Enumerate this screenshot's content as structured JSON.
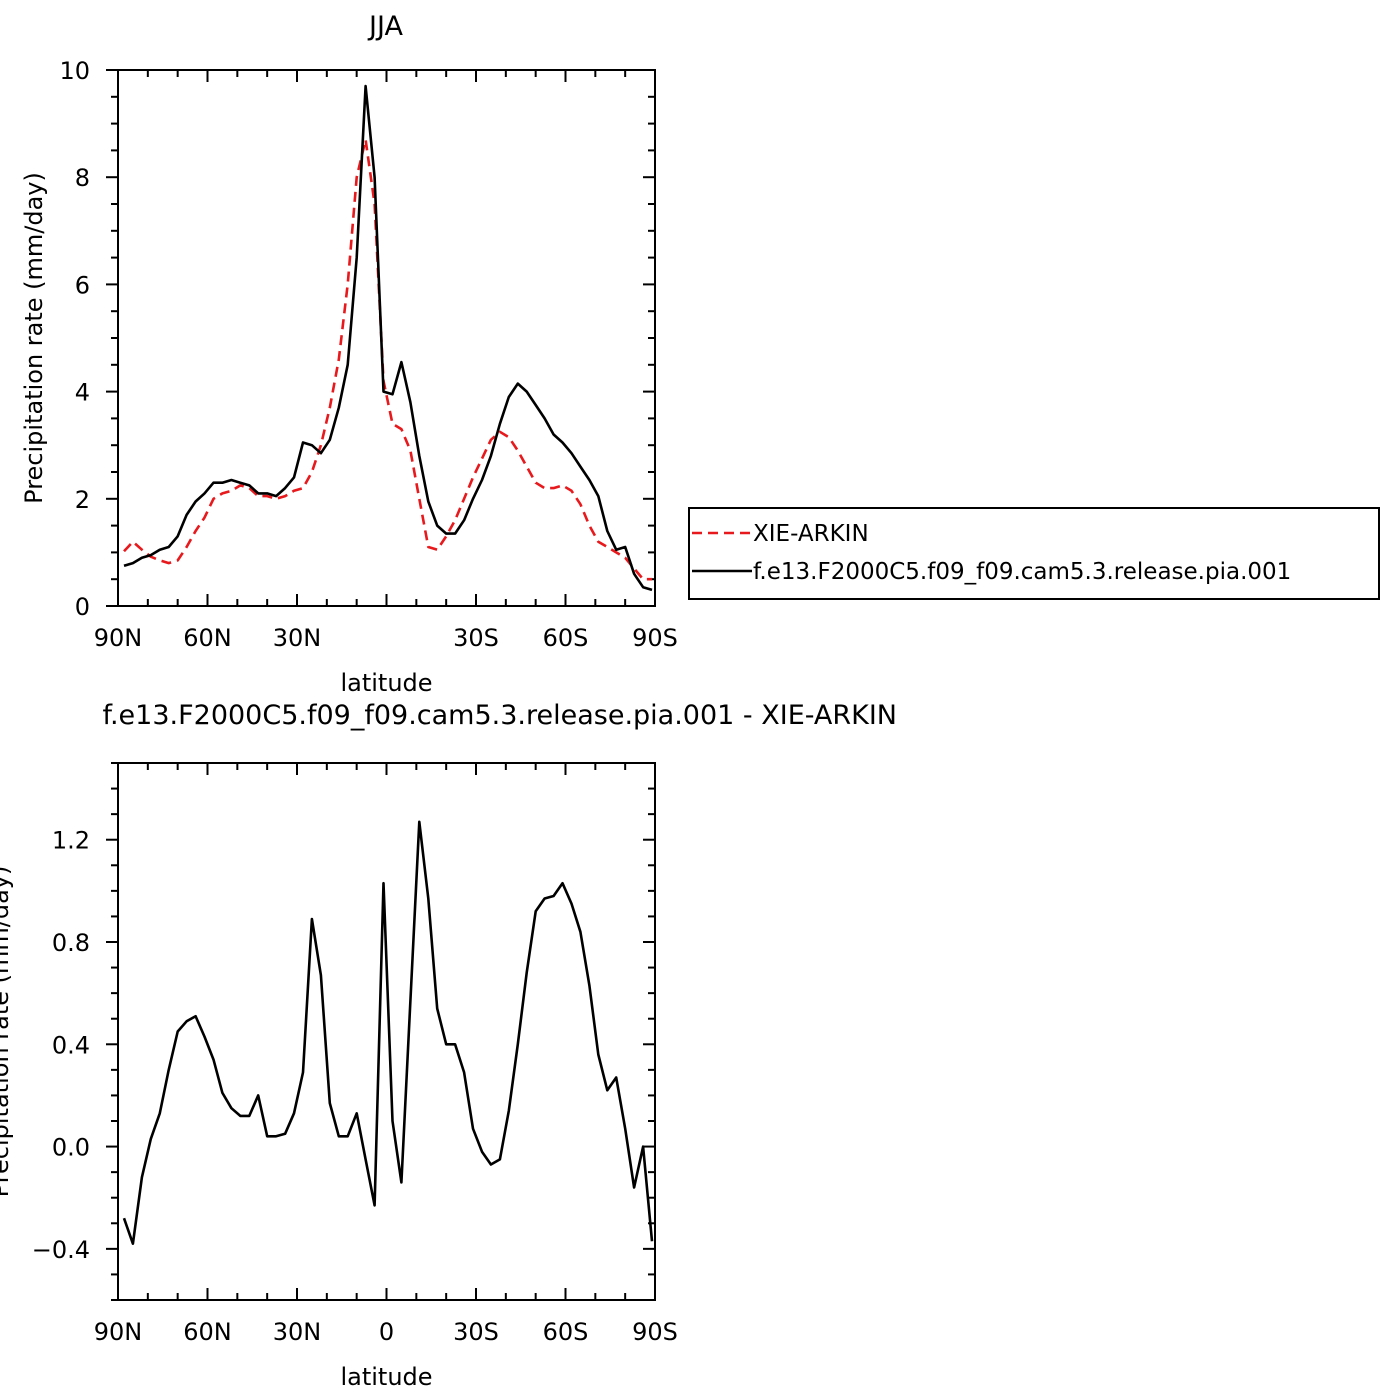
{
  "chart_data": [
    {
      "type": "line",
      "title": "JJA",
      "xlabel": "latitude",
      "ylabel": "Precipitation rate (mm/day)",
      "xlim": [
        90,
        -90
      ],
      "ylim": [
        0,
        10
      ],
      "x_ticks": [
        {
          "value": 90,
          "label": "90N"
        },
        {
          "value": 60,
          "label": "60N"
        },
        {
          "value": 30,
          "label": "30N"
        },
        {
          "value": -30,
          "label": "30S"
        },
        {
          "value": -60,
          "label": "60S"
        },
        {
          "value": -90,
          "label": "90S"
        }
      ],
      "y_ticks": [
        {
          "value": 0,
          "label": "0"
        },
        {
          "value": 2,
          "label": "2"
        },
        {
          "value": 4,
          "label": "4"
        },
        {
          "value": 6,
          "label": "6"
        },
        {
          "value": 8,
          "label": "8"
        },
        {
          "value": 10,
          "label": "10"
        }
      ],
      "legend_position": "right",
      "x": [
        88,
        85,
        82,
        79,
        76,
        73,
        70,
        67,
        64,
        61,
        58,
        55,
        52,
        49,
        46,
        43,
        40,
        37,
        34,
        31,
        28,
        25,
        22,
        19,
        16,
        13,
        10,
        7,
        4,
        1,
        -2,
        -5,
        -8,
        -11,
        -14,
        -17,
        -20,
        -23,
        -26,
        -29,
        -32,
        -35,
        -38,
        -41,
        -44,
        -47,
        -50,
        -53,
        -56,
        -59,
        -62,
        -65,
        -68,
        -71,
        -74,
        -77,
        -80,
        -83,
        -86,
        -89
      ],
      "series": [
        {
          "name": "XIE-ARKIN",
          "color": "#e8191c",
          "dash": "dashed",
          "values": [
            1.02,
            1.2,
            1.05,
            0.92,
            0.85,
            0.8,
            0.85,
            1.1,
            1.4,
            1.65,
            2.0,
            2.1,
            2.15,
            2.25,
            2.2,
            2.05,
            2.05,
            2.0,
            2.05,
            2.15,
            2.2,
            2.5,
            3.0,
            3.7,
            4.6,
            6.0,
            8.0,
            8.7,
            7.5,
            4.2,
            3.4,
            3.3,
            2.9,
            2.0,
            1.1,
            1.05,
            1.3,
            1.6,
            2.0,
            2.4,
            2.75,
            3.1,
            3.25,
            3.15,
            2.9,
            2.6,
            2.3,
            2.2,
            2.2,
            2.25,
            2.15,
            1.9,
            1.5,
            1.2,
            1.1,
            1.0,
            0.9,
            0.7,
            0.5,
            0.5
          ]
        },
        {
          "name": "f.e13.F2000C5.f09_f09.cam5.3.release.pia.001",
          "color": "#000000",
          "dash": "solid",
          "values": [
            0.75,
            0.8,
            0.9,
            0.95,
            1.05,
            1.1,
            1.3,
            1.7,
            1.95,
            2.1,
            2.3,
            2.3,
            2.35,
            2.3,
            2.25,
            2.1,
            2.1,
            2.05,
            2.2,
            2.4,
            3.05,
            3.0,
            2.85,
            3.1,
            3.7,
            4.5,
            6.5,
            9.7,
            8.0,
            4.0,
            3.95,
            4.55,
            3.8,
            2.8,
            1.95,
            1.5,
            1.35,
            1.35,
            1.6,
            2.0,
            2.35,
            2.8,
            3.4,
            3.9,
            4.15,
            4.0,
            3.75,
            3.5,
            3.2,
            3.05,
            2.85,
            2.6,
            2.35,
            2.05,
            1.4,
            1.05,
            1.1,
            0.6,
            0.35,
            0.3
          ]
        }
      ]
    },
    {
      "type": "line",
      "title": "f.e13.F2000C5.f09_f09.cam5.3.release.pia.001 - XIE-ARKIN",
      "xlabel": "latitude",
      "ylabel": "Precipitation rate (mm/day)",
      "xlim": [
        90,
        -90
      ],
      "ylim": [
        -0.6,
        1.5
      ],
      "x_ticks": [
        {
          "value": 90,
          "label": "90N"
        },
        {
          "value": 60,
          "label": "60N"
        },
        {
          "value": 30,
          "label": "30N"
        },
        {
          "value": 0,
          "label": "0"
        },
        {
          "value": -30,
          "label": "30S"
        },
        {
          "value": -60,
          "label": "60S"
        },
        {
          "value": -90,
          "label": "90S"
        }
      ],
      "y_ticks": [
        {
          "value": -0.4,
          "label": "−0.4"
        },
        {
          "value": 0.0,
          "label": "0.0"
        },
        {
          "value": 0.4,
          "label": "0.4"
        },
        {
          "value": 0.8,
          "label": "0.8"
        },
        {
          "value": 1.2,
          "label": "1.2"
        }
      ],
      "x": [
        88,
        85,
        82,
        79,
        76,
        73,
        70,
        67,
        64,
        61,
        58,
        55,
        52,
        49,
        46,
        43,
        40,
        37,
        34,
        31,
        28,
        25,
        22,
        19,
        16,
        13,
        10,
        7,
        4,
        1,
        -2,
        -5,
        -8,
        -11,
        -14,
        -17,
        -20,
        -23,
        -26,
        -29,
        -32,
        -35,
        -38,
        -41,
        -44,
        -47,
        -50,
        -53,
        -56,
        -59,
        -62,
        -65,
        -68,
        -71,
        -74,
        -77,
        -80,
        -83,
        -86,
        -89
      ],
      "series": [
        {
          "color": "#000000",
          "values": [
            -0.28,
            -0.38,
            -0.12,
            0.03,
            0.13,
            0.3,
            0.45,
            0.49,
            0.51,
            0.43,
            0.34,
            0.21,
            0.15,
            0.12,
            0.12,
            0.2,
            0.04,
            0.04,
            0.05,
            0.13,
            0.29,
            0.89,
            0.67,
            0.17,
            0.04,
            0.04,
            0.13,
            -0.05,
            -0.23,
            1.03,
            0.1,
            -0.14,
            0.57,
            1.27,
            0.97,
            0.54,
            0.4,
            0.4,
            0.29,
            0.07,
            -0.02,
            -0.07,
            -0.05,
            0.14,
            0.4,
            0.68,
            0.92,
            0.97,
            0.98,
            1.03,
            0.95,
            0.84,
            0.63,
            0.36,
            0.22,
            0.27,
            0.07,
            -0.16,
            0.0,
            -0.37
          ]
        }
      ]
    }
  ]
}
